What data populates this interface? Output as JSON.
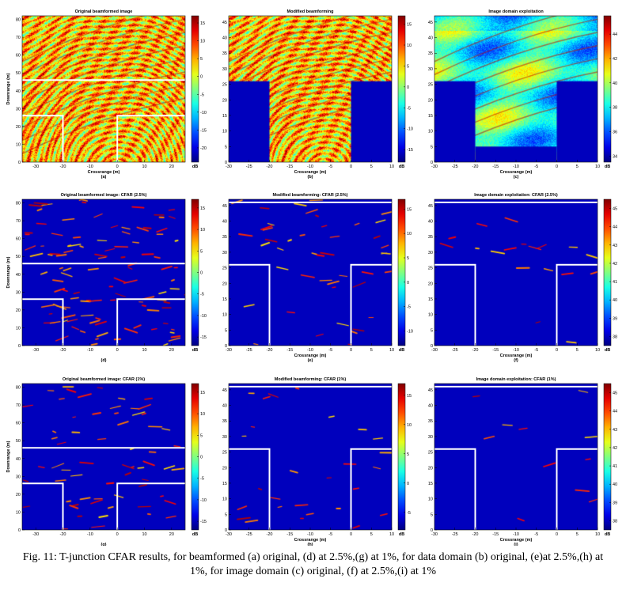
{
  "caption": "Fig. 11: T-junction CFAR results, for beamformed (a) original, (d) at 2.5%,(g) at 1%, for data domain (b) original, (e)at 2.5%,(h) at 1%, for image domain (c) original, (f) at 2.5%,(i) at 1%",
  "chart_data": [
    {
      "id": "a",
      "type": "heatmap",
      "title": "Original beamformed image",
      "xlabel": "Crossrange (m)",
      "ylabel": "Downrange (m)",
      "sublabel": "(a)",
      "colorbar_label": "dB",
      "x_ticks": [
        -30,
        -20,
        -10,
        0,
        10,
        20
      ],
      "xlim": [
        -35,
        25
      ],
      "y_ticks": [
        0,
        10,
        20,
        30,
        40,
        50,
        60,
        70,
        80
      ],
      "ylim": [
        0,
        82
      ],
      "colorbar_ticks": [
        15,
        10,
        5,
        0,
        -5,
        -10,
        -15,
        -20
      ],
      "clim": [
        -24,
        17
      ],
      "style": "dense",
      "walls": [
        [
          [
            -35,
            26
          ],
          [
            -20,
            26
          ],
          [
            -20,
            0
          ]
        ],
        [
          [
            0,
            0
          ],
          [
            0,
            26
          ],
          [
            25,
            26
          ]
        ],
        [
          [
            -35,
            46
          ],
          [
            25,
            46
          ]
        ]
      ]
    },
    {
      "id": "b",
      "type": "heatmap",
      "title": "Modified beamforming",
      "xlabel": "Crossrange (m)",
      "ylabel": "",
      "sublabel": "(b)",
      "colorbar_label": "dB",
      "x_ticks": [
        -30,
        -25,
        -20,
        -15,
        -10,
        -5,
        0,
        5,
        10
      ],
      "xlim": [
        -30,
        10
      ],
      "y_ticks": [
        0,
        5,
        10,
        15,
        20,
        25,
        30,
        35,
        40,
        45
      ],
      "ylim": [
        0,
        47
      ],
      "colorbar_ticks": [
        15,
        10,
        5,
        0,
        -5,
        -10,
        -15
      ],
      "clim": [
        -18,
        17
      ],
      "style": "dense",
      "masks": [
        [
          -30,
          0,
          -20,
          26
        ],
        [
          0,
          0,
          10,
          26
        ]
      ],
      "walls": []
    },
    {
      "id": "c",
      "type": "heatmap",
      "title": "Image domain exploitation",
      "xlabel": "Crossrange (m)",
      "ylabel": "",
      "sublabel": "(c)",
      "colorbar_label": "dB",
      "x_ticks": [
        -30,
        -25,
        -20,
        -15,
        -10,
        -5,
        0,
        5,
        10
      ],
      "xlim": [
        -30,
        10
      ],
      "y_ticks": [
        0,
        5,
        10,
        15,
        20,
        25,
        30,
        35,
        40,
        45
      ],
      "ylim": [
        0,
        47
      ],
      "colorbar_ticks": [
        44,
        42,
        40,
        38,
        36,
        34
      ],
      "clim": [
        33.5,
        45.5
      ],
      "style": "smooth",
      "masks": [
        [
          -30,
          0,
          -20,
          26
        ],
        [
          0,
          0,
          10,
          26
        ],
        [
          -20,
          0,
          0,
          5
        ]
      ],
      "walls": []
    },
    {
      "id": "d",
      "type": "heatmap",
      "title": "Original beamformed image: CFAR (2.5%)",
      "xlabel": "",
      "ylabel": "Downrange (m)",
      "sublabel": "(d)",
      "colorbar_label": "dB",
      "x_ticks": [
        -30,
        -20,
        -10,
        0,
        10,
        20
      ],
      "xlim": [
        -35,
        25
      ],
      "y_ticks": [
        0,
        10,
        20,
        30,
        40,
        50,
        60,
        70,
        80
      ],
      "ylim": [
        0,
        82
      ],
      "colorbar_ticks": [
        15,
        10,
        5,
        0,
        -5,
        -10,
        -15
      ],
      "clim": [
        -17,
        17
      ],
      "style": "sparse",
      "density": 0.12,
      "walls": [
        [
          [
            -35,
            26
          ],
          [
            -20,
            26
          ],
          [
            -20,
            0
          ]
        ],
        [
          [
            0,
            0
          ],
          [
            0,
            26
          ],
          [
            25,
            26
          ]
        ],
        [
          [
            -35,
            46
          ],
          [
            25,
            46
          ]
        ]
      ]
    },
    {
      "id": "e",
      "type": "heatmap",
      "title": "Modified beamforming: CFAR (2.5%)",
      "xlabel": "Crossrange (m)",
      "ylabel": "",
      "sublabel": "(e)",
      "colorbar_label": "dB",
      "x_ticks": [
        -30,
        -25,
        -20,
        -15,
        -10,
        -5,
        0,
        5,
        10
      ],
      "xlim": [
        -30,
        10
      ],
      "y_ticks": [
        0,
        5,
        10,
        15,
        20,
        25,
        30,
        35,
        40,
        45
      ],
      "ylim": [
        0,
        47
      ],
      "colorbar_ticks": [
        15,
        10,
        5,
        0,
        -5,
        -10
      ],
      "clim": [
        -13,
        17
      ],
      "style": "sparse",
      "density": 0.05,
      "walls": [
        [
          [
            -30,
            26
          ],
          [
            -20,
            26
          ],
          [
            -20,
            0
          ]
        ],
        [
          [
            0,
            0
          ],
          [
            0,
            26
          ],
          [
            10,
            26
          ]
        ],
        [
          [
            -30,
            46
          ],
          [
            10,
            46
          ]
        ]
      ]
    },
    {
      "id": "f",
      "type": "heatmap",
      "title": "Image domain exploitation: CFAR (2.5%)",
      "xlabel": "Crossrange (m)",
      "ylabel": "",
      "sublabel": "(f)",
      "colorbar_label": "dB",
      "x_ticks": [
        -30,
        -25,
        -20,
        -15,
        -10,
        -5,
        0,
        5,
        10
      ],
      "xlim": [
        -30,
        10
      ],
      "y_ticks": [
        0,
        5,
        10,
        15,
        20,
        25,
        30,
        35,
        40,
        45
      ],
      "ylim": [
        0,
        47
      ],
      "colorbar_ticks": [
        45,
        44,
        43,
        42,
        41,
        40,
        39,
        38
      ],
      "clim": [
        37.5,
        45.5
      ],
      "style": "sparse",
      "density": 0.02,
      "walls": [
        [
          [
            -30,
            26
          ],
          [
            -20,
            26
          ],
          [
            -20,
            0
          ]
        ],
        [
          [
            0,
            0
          ],
          [
            0,
            26
          ],
          [
            10,
            26
          ]
        ],
        [
          [
            -30,
            46
          ],
          [
            10,
            46
          ]
        ]
      ]
    },
    {
      "id": "g",
      "type": "heatmap",
      "title": "Original beamformed image: CFAR (1%)",
      "xlabel": "",
      "ylabel": "Downrange (m)",
      "sublabel": "(g)",
      "colorbar_label": "dB",
      "x_ticks": [
        -30,
        -20,
        -10,
        0,
        10,
        20
      ],
      "xlim": [
        -35,
        25
      ],
      "y_ticks": [
        0,
        10,
        20,
        30,
        40,
        50,
        60,
        70,
        80
      ],
      "ylim": [
        0,
        82
      ],
      "colorbar_ticks": [
        15,
        10,
        5,
        0,
        -5,
        -10,
        -15
      ],
      "clim": [
        -17,
        17
      ],
      "style": "sparse",
      "density": 0.07,
      "walls": [
        [
          [
            -35,
            26
          ],
          [
            -20,
            26
          ],
          [
            -20,
            0
          ]
        ],
        [
          [
            0,
            0
          ],
          [
            0,
            26
          ],
          [
            25,
            26
          ]
        ],
        [
          [
            -35,
            46
          ],
          [
            25,
            46
          ]
        ]
      ]
    },
    {
      "id": "h",
      "type": "heatmap",
      "title": "Modified beamforming: CFAR (1%)",
      "xlabel": "Crossrange (m)",
      "ylabel": "",
      "sublabel": "(h)",
      "colorbar_label": "dB",
      "x_ticks": [
        -30,
        -25,
        -20,
        -15,
        -10,
        -5,
        0,
        5,
        10
      ],
      "xlim": [
        -30,
        10
      ],
      "y_ticks": [
        0,
        5,
        10,
        15,
        20,
        25,
        30,
        35,
        40,
        45
      ],
      "ylim": [
        0,
        47
      ],
      "colorbar_ticks": [
        15,
        10,
        5,
        0,
        -5
      ],
      "clim": [
        -8,
        17
      ],
      "style": "sparse",
      "density": 0.03,
      "walls": [
        [
          [
            -30,
            26
          ],
          [
            -20,
            26
          ],
          [
            -20,
            0
          ]
        ],
        [
          [
            0,
            0
          ],
          [
            0,
            26
          ],
          [
            10,
            26
          ]
        ],
        [
          [
            -30,
            46
          ],
          [
            10,
            46
          ]
        ]
      ]
    },
    {
      "id": "i",
      "type": "heatmap",
      "title": "Image domain exploitation: CFAR (1%)",
      "xlabel": "Crossrange (m)",
      "ylabel": "",
      "sublabel": "(i)",
      "colorbar_label": "dB",
      "x_ticks": [
        -30,
        -25,
        -20,
        -15,
        -10,
        -5,
        0,
        5,
        10
      ],
      "xlim": [
        -30,
        10
      ],
      "y_ticks": [
        0,
        5,
        10,
        15,
        20,
        25,
        30,
        35,
        40,
        45
      ],
      "ylim": [
        0,
        47
      ],
      "colorbar_ticks": [
        45,
        44,
        43,
        42,
        41,
        40,
        39,
        38
      ],
      "clim": [
        37.5,
        45.5
      ],
      "style": "sparse",
      "density": 0.012,
      "walls": [
        [
          [
            -30,
            26
          ],
          [
            -20,
            26
          ],
          [
            -20,
            0
          ]
        ],
        [
          [
            0,
            0
          ],
          [
            0,
            26
          ],
          [
            10,
            26
          ]
        ],
        [
          [
            -30,
            46
          ],
          [
            10,
            46
          ]
        ]
      ]
    }
  ]
}
